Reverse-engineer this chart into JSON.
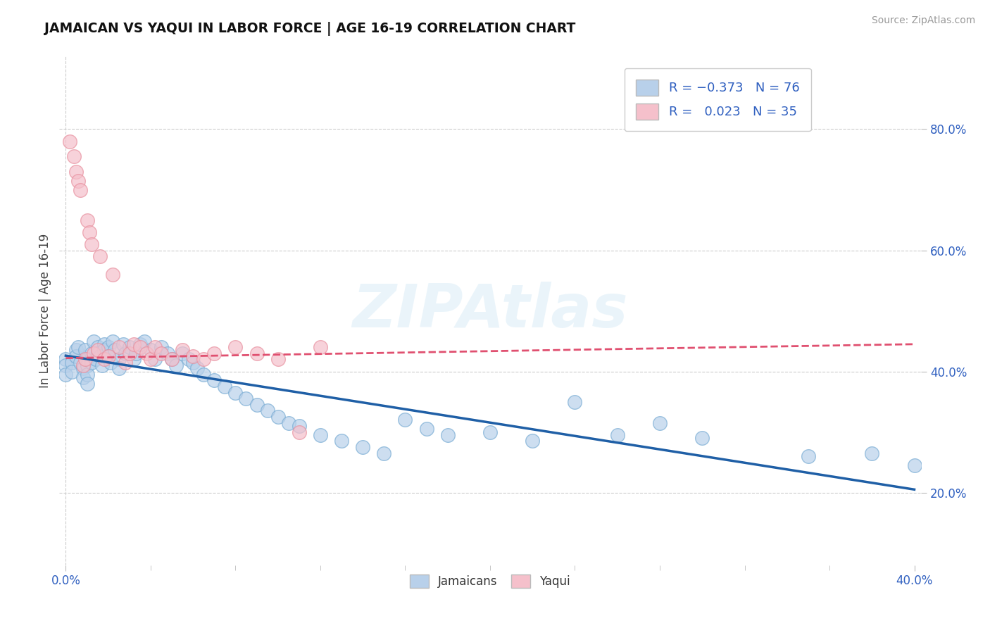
{
  "title": "JAMAICAN VS YAQUI IN LABOR FORCE | AGE 16-19 CORRELATION CHART",
  "source_text": "Source: ZipAtlas.com",
  "ylabel": "In Labor Force | Age 16-19",
  "xlim": [
    -0.003,
    0.403
  ],
  "ylim": [
    0.08,
    0.92
  ],
  "y_ticks": [
    0.2,
    0.4,
    0.6,
    0.8
  ],
  "y_tick_labels": [
    "20.0%",
    "40.0%",
    "60.0%",
    "80.0%"
  ],
  "x_ticks": [
    0.0,
    0.4
  ],
  "x_tick_labels": [
    "0.0%",
    "40.0%"
  ],
  "blue_color": "#b8d0ea",
  "blue_edge_color": "#7aadd4",
  "blue_line_color": "#1f5fa6",
  "pink_color": "#f5c0cb",
  "pink_edge_color": "#e8909f",
  "pink_line_color": "#e05070",
  "legend_text_color": "#3060c0",
  "watermark_color": "#d8e8f0",
  "jamaicans_x": [
    0.0,
    0.0,
    0.0,
    0.003,
    0.003,
    0.005,
    0.005,
    0.006,
    0.007,
    0.008,
    0.008,
    0.009,
    0.01,
    0.01,
    0.01,
    0.01,
    0.012,
    0.012,
    0.013,
    0.014,
    0.015,
    0.015,
    0.016,
    0.017,
    0.018,
    0.018,
    0.02,
    0.02,
    0.021,
    0.022,
    0.023,
    0.025,
    0.025,
    0.027,
    0.028,
    0.03,
    0.032,
    0.033,
    0.035,
    0.037,
    0.04,
    0.042,
    0.045,
    0.048,
    0.05,
    0.052,
    0.055,
    0.058,
    0.06,
    0.062,
    0.065,
    0.07,
    0.075,
    0.08,
    0.085,
    0.09,
    0.095,
    0.1,
    0.105,
    0.11,
    0.12,
    0.13,
    0.14,
    0.15,
    0.16,
    0.17,
    0.18,
    0.2,
    0.22,
    0.24,
    0.26,
    0.28,
    0.3,
    0.35,
    0.38,
    0.4
  ],
  "jamaicans_y": [
    0.42,
    0.41,
    0.395,
    0.415,
    0.4,
    0.435,
    0.425,
    0.44,
    0.415,
    0.405,
    0.39,
    0.435,
    0.42,
    0.41,
    0.395,
    0.38,
    0.43,
    0.415,
    0.45,
    0.42,
    0.44,
    0.43,
    0.425,
    0.41,
    0.445,
    0.435,
    0.44,
    0.425,
    0.415,
    0.45,
    0.435,
    0.42,
    0.405,
    0.445,
    0.43,
    0.44,
    0.42,
    0.43,
    0.445,
    0.45,
    0.435,
    0.42,
    0.44,
    0.43,
    0.42,
    0.41,
    0.43,
    0.42,
    0.415,
    0.405,
    0.395,
    0.385,
    0.375,
    0.365,
    0.355,
    0.345,
    0.335,
    0.325,
    0.315,
    0.31,
    0.295,
    0.285,
    0.275,
    0.265,
    0.32,
    0.305,
    0.295,
    0.3,
    0.285,
    0.35,
    0.295,
    0.315,
    0.29,
    0.26,
    0.265,
    0.245
  ],
  "yaqui_x": [
    0.002,
    0.004,
    0.005,
    0.006,
    0.007,
    0.008,
    0.009,
    0.01,
    0.011,
    0.012,
    0.013,
    0.015,
    0.016,
    0.018,
    0.02,
    0.022,
    0.025,
    0.028,
    0.03,
    0.032,
    0.035,
    0.038,
    0.04,
    0.042,
    0.045,
    0.05,
    0.055,
    0.06,
    0.065,
    0.07,
    0.08,
    0.09,
    0.1,
    0.11,
    0.12
  ],
  "yaqui_y": [
    0.78,
    0.755,
    0.73,
    0.715,
    0.7,
    0.41,
    0.42,
    0.65,
    0.63,
    0.61,
    0.43,
    0.435,
    0.59,
    0.42,
    0.425,
    0.56,
    0.44,
    0.415,
    0.43,
    0.445,
    0.44,
    0.43,
    0.42,
    0.44,
    0.43,
    0.42,
    0.435,
    0.425,
    0.42,
    0.43,
    0.44,
    0.43,
    0.42,
    0.3,
    0.44
  ],
  "blue_trend_x": [
    0.0,
    0.4
  ],
  "blue_trend_y": [
    0.426,
    0.205
  ],
  "pink_trend_x": [
    0.0,
    0.4
  ],
  "pink_trend_y": [
    0.422,
    0.445
  ]
}
